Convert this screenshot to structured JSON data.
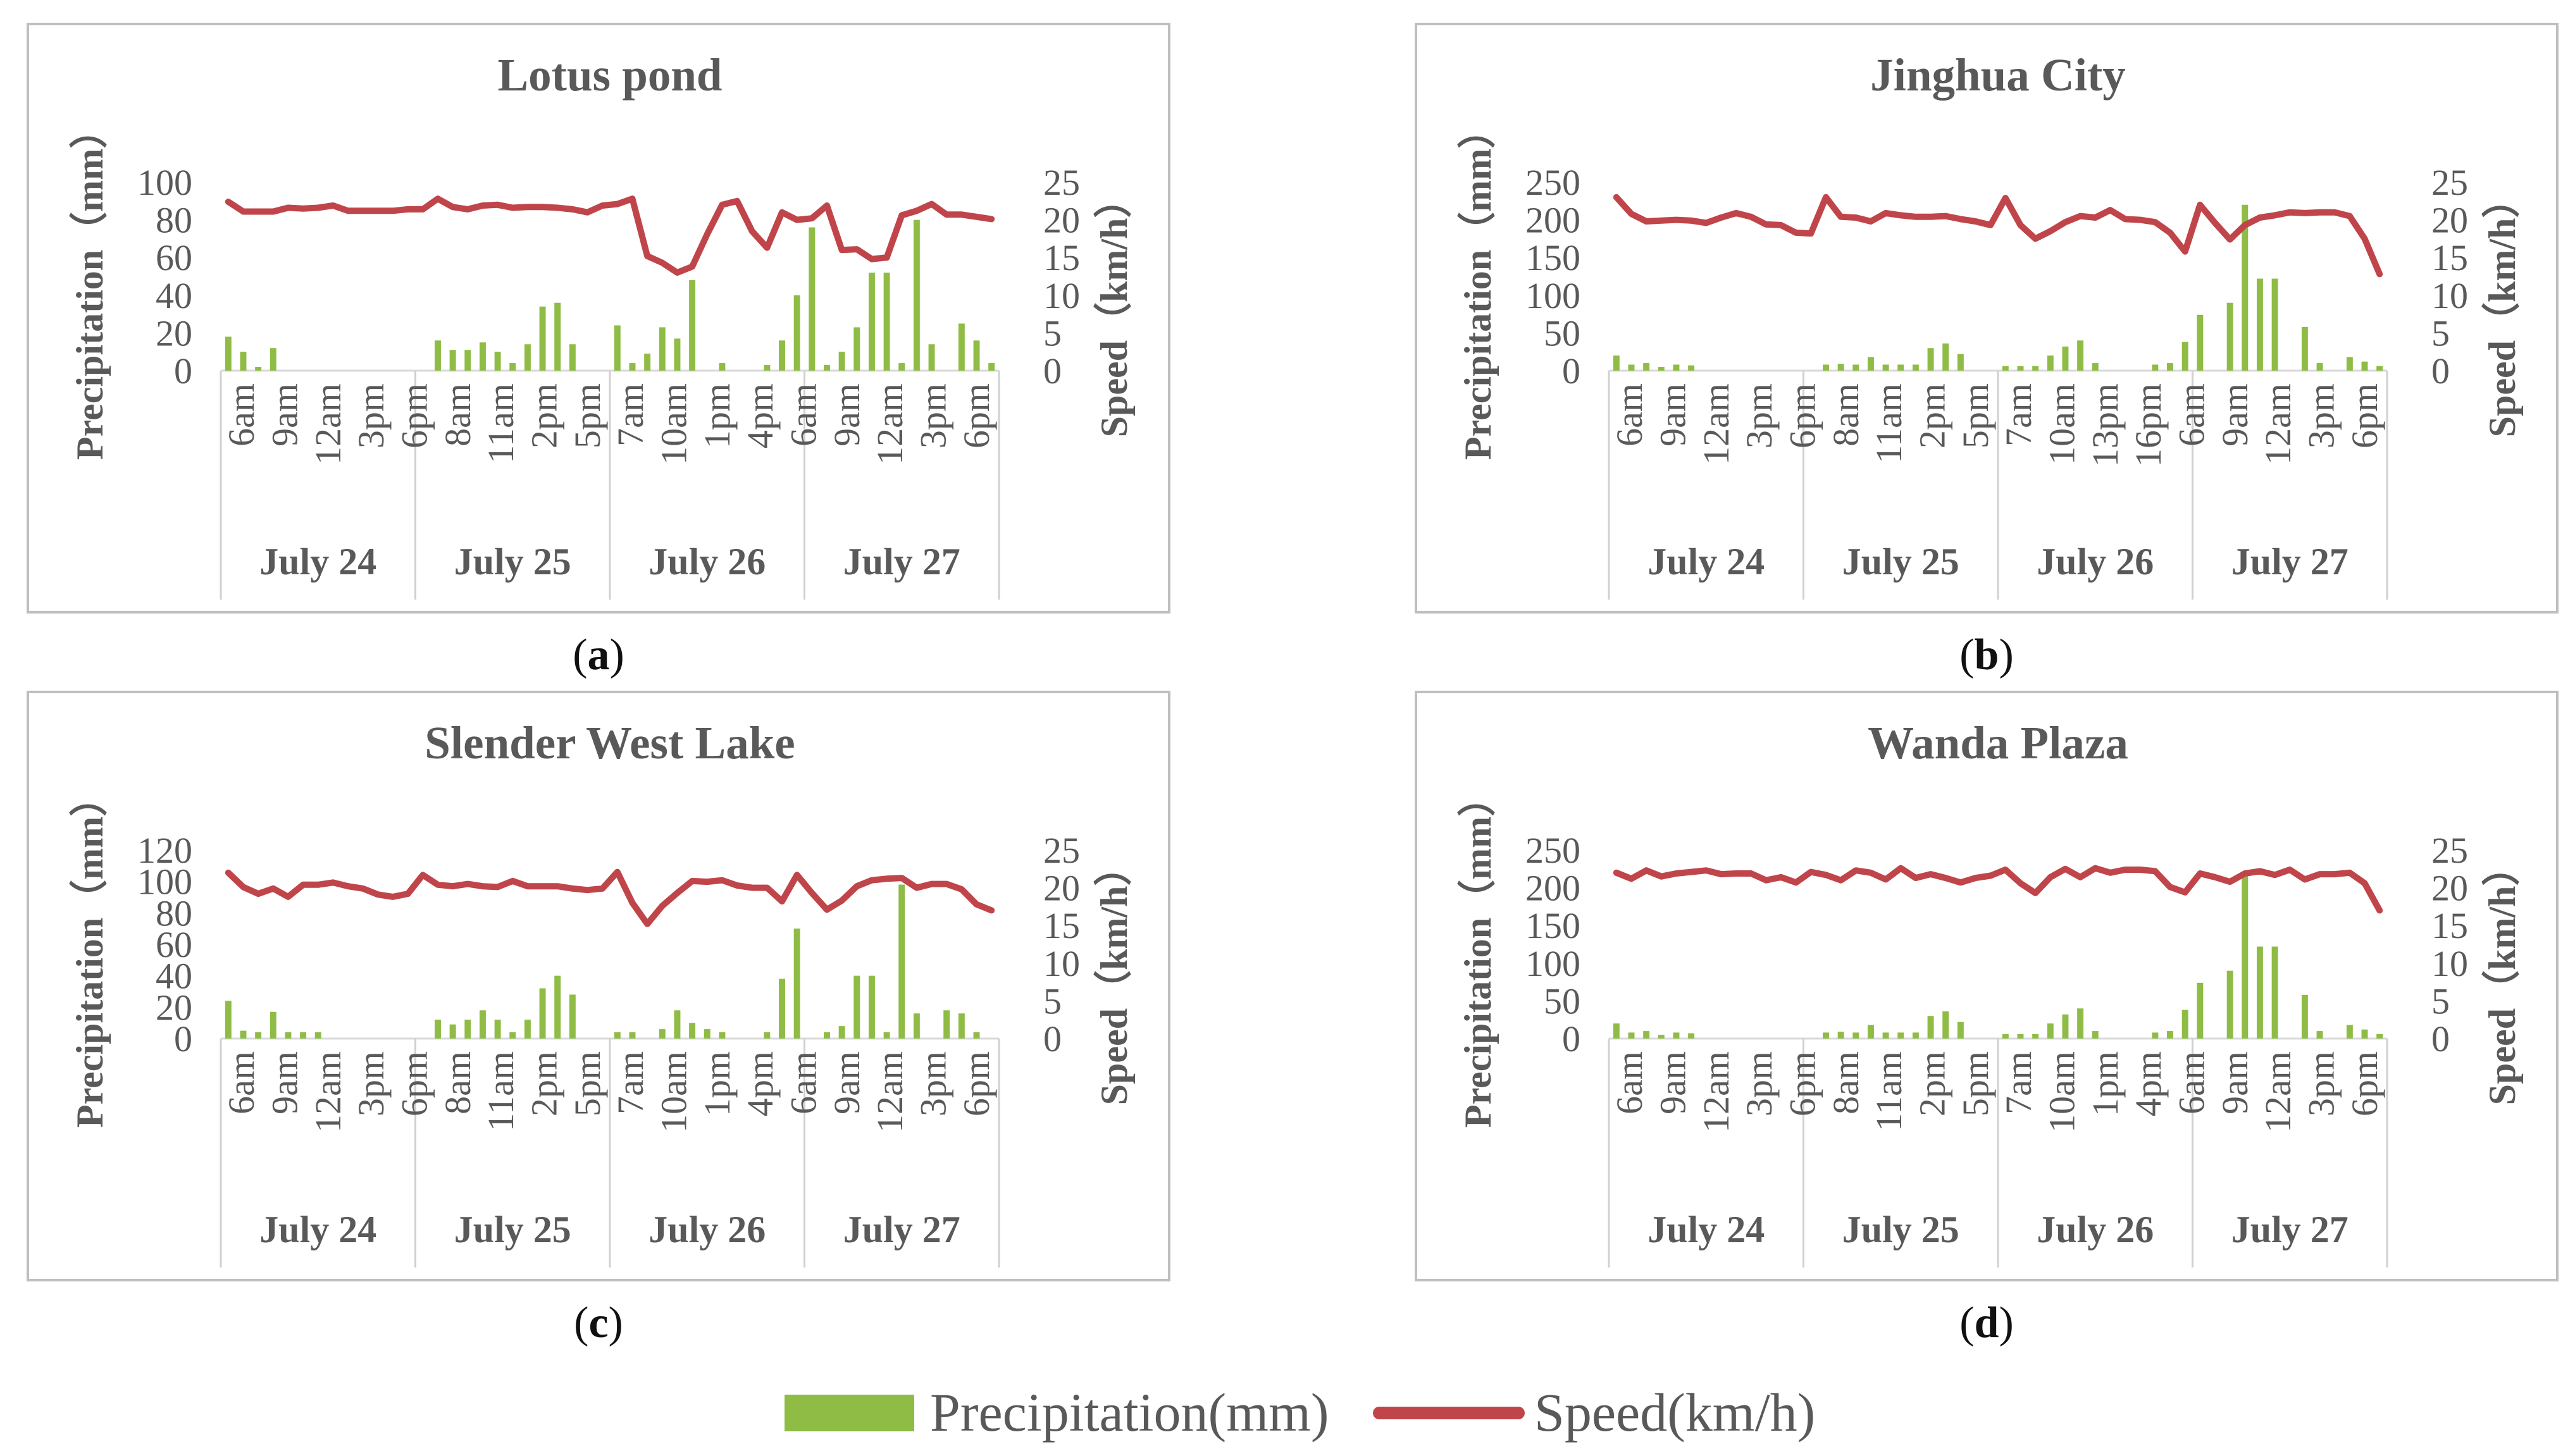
{
  "colors": {
    "precipitation": "#8fbc45",
    "speed": "#c0454a",
    "frame": "#bfbfbf",
    "text": "#595959"
  },
  "legend": {
    "precip_label": "Precipitation(mm)",
    "speed_label": "Speed(km/h)"
  },
  "chart_data": [
    {
      "type": "bar+line",
      "title": "Lotus pond",
      "caption_letter": "a",
      "ylabel": "Precipitation（mm）",
      "y2label": "Speed（km/h）",
      "ylim": [
        0,
        100
      ],
      "yticks": [
        0,
        20,
        40,
        60,
        80,
        100
      ],
      "y2lim": [
        0,
        25
      ],
      "y2ticks": [
        0,
        5,
        10,
        15,
        20,
        25
      ],
      "x_ticks": [
        "6am",
        "9am",
        "12am",
        "3pm",
        "6pm",
        "8am",
        "11am",
        "2pm",
        "5pm",
        "7am",
        "10am",
        "1pm",
        "4pm",
        "6am",
        "9am",
        "12am",
        "3pm",
        "6pm"
      ],
      "groups": [
        "July 24",
        "July 25",
        "July 26",
        "July 27"
      ],
      "n": 52,
      "precipitation": [
        18,
        10,
        2,
        12,
        0,
        0,
        0,
        0,
        0,
        0,
        0,
        0,
        0,
        0,
        16,
        11,
        11,
        15,
        10,
        4,
        14,
        34,
        36,
        14,
        0,
        0,
        24,
        4,
        9,
        23,
        17,
        48,
        0,
        4,
        0,
        0,
        3,
        16,
        40,
        76,
        3,
        10,
        23,
        52,
        52,
        4,
        80,
        14,
        0,
        25,
        16,
        4
      ],
      "speed": [
        22.4,
        21.1,
        21.1,
        21.1,
        21.6,
        21.5,
        21.6,
        21.9,
        21.2,
        21.2,
        21.2,
        21.2,
        21.4,
        21.4,
        22.8,
        21.7,
        21.4,
        21.9,
        22.0,
        21.6,
        21.7,
        21.7,
        21.6,
        21.4,
        21.0,
        21.9,
        22.1,
        22.8,
        15.2,
        14.3,
        13.0,
        13.8,
        18.1,
        22.0,
        22.5,
        18.5,
        16.3,
        21.0,
        20.0,
        20.2,
        21.9,
        16.0,
        16.1,
        14.8,
        15.0,
        20.6,
        21.2,
        22.1,
        20.7,
        20.7,
        20.4,
        20.1
      ]
    },
    {
      "type": "bar+line",
      "title": "Jinghua City",
      "caption_letter": "b",
      "ylabel": "Precipitation（mm）",
      "y2label": "Speed（km/h）",
      "ylim": [
        0,
        250
      ],
      "yticks": [
        0,
        50,
        100,
        150,
        200,
        250
      ],
      "y2lim": [
        0,
        25
      ],
      "y2ticks": [
        0,
        5,
        10,
        15,
        20,
        25
      ],
      "x_ticks": [
        "6am",
        "9am",
        "12am",
        "3pm",
        "6pm",
        "8am",
        "11am",
        "2pm",
        "5pm",
        "7am",
        "10am",
        "13pm",
        "16pm",
        "6am",
        "9am",
        "12am",
        "3pm",
        "6pm"
      ],
      "groups": [
        "July 24",
        "July 25",
        "July 26",
        "July 27"
      ],
      "n": 52,
      "precipitation": [
        20,
        8,
        10,
        5,
        8,
        7,
        0,
        0,
        0,
        0,
        0,
        0,
        0,
        0,
        8,
        9,
        8,
        18,
        8,
        8,
        8,
        30,
        36,
        22,
        0,
        0,
        6,
        6,
        6,
        20,
        32,
        40,
        10,
        0,
        0,
        0,
        8,
        10,
        38,
        74,
        0,
        90,
        220,
        122,
        122,
        0,
        58,
        10,
        0,
        18,
        12,
        6
      ],
      "speed": [
        23.0,
        20.8,
        19.8,
        19.9,
        20.0,
        19.9,
        19.6,
        20.3,
        20.9,
        20.4,
        19.4,
        19.3,
        18.3,
        18.2,
        23.0,
        20.4,
        20.3,
        19.8,
        20.9,
        20.6,
        20.4,
        20.4,
        20.5,
        20.1,
        19.8,
        19.3,
        22.9,
        19.3,
        17.5,
        18.5,
        19.7,
        20.5,
        20.3,
        21.3,
        20.1,
        20.0,
        19.7,
        18.3,
        15.8,
        22.0,
        19.6,
        17.4,
        19.3,
        20.3,
        20.6,
        21.0,
        20.9,
        21.0,
        21.0,
        20.5,
        17.5,
        12.8
      ]
    },
    {
      "type": "bar+line",
      "title": "Slender West Lake",
      "caption_letter": "c",
      "ylabel": "Precipitation（mm）",
      "y2label": "Speed（km/h）",
      "ylim": [
        0,
        120
      ],
      "yticks": [
        0,
        20,
        40,
        60,
        80,
        100,
        120
      ],
      "y2lim": [
        0,
        25
      ],
      "y2ticks": [
        0,
        5,
        10,
        15,
        20,
        25
      ],
      "x_ticks": [
        "6am",
        "9am",
        "12am",
        "3pm",
        "6pm",
        "8am",
        "11am",
        "2pm",
        "5pm",
        "7am",
        "10am",
        "1pm",
        "4pm",
        "6am",
        "9am",
        "12am",
        "3pm",
        "6pm"
      ],
      "groups": [
        "July 24",
        "July 25",
        "July 26",
        "July 27"
      ],
      "n": 52,
      "precipitation": [
        24,
        5,
        4,
        17,
        4,
        4,
        4,
        0,
        0,
        0,
        0,
        0,
        0,
        0,
        12,
        9,
        12,
        18,
        12,
        4,
        12,
        32,
        40,
        28,
        0,
        0,
        4,
        4,
        0,
        6,
        18,
        10,
        6,
        4,
        0,
        0,
        4,
        38,
        70,
        0,
        4,
        8,
        40,
        40,
        4,
        98,
        16,
        0,
        18,
        16,
        4,
        0
      ],
      "speed": [
        22.0,
        20.1,
        19.2,
        19.9,
        18.8,
        20.4,
        20.4,
        20.7,
        20.2,
        19.9,
        19.1,
        18.8,
        19.2,
        21.7,
        20.4,
        20.2,
        20.5,
        20.2,
        20.1,
        20.9,
        20.2,
        20.2,
        20.2,
        19.9,
        19.7,
        19.9,
        22.1,
        18.0,
        15.2,
        17.6,
        19.3,
        20.9,
        20.8,
        21.0,
        20.3,
        20.0,
        20.0,
        18.2,
        21.7,
        19.3,
        17.1,
        18.3,
        20.2,
        21.0,
        21.2,
        21.3,
        20.0,
        20.5,
        20.5,
        19.8,
        17.8,
        17.0
      ]
    },
    {
      "type": "bar+line",
      "title": "Wanda Plaza",
      "caption_letter": "d",
      "ylabel": "Precipitation（mm）",
      "y2label": "Speed（km/h）",
      "ylim": [
        0,
        250
      ],
      "yticks": [
        0,
        50,
        100,
        150,
        200,
        250
      ],
      "y2lim": [
        0,
        25
      ],
      "y2ticks": [
        0,
        5,
        10,
        15,
        20,
        25
      ],
      "x_ticks": [
        "6am",
        "9am",
        "12am",
        "3pm",
        "6pm",
        "8am",
        "11am",
        "2pm",
        "5pm",
        "7am",
        "10am",
        "1pm",
        "4pm",
        "6am",
        "9am",
        "12am",
        "3pm",
        "6pm"
      ],
      "groups": [
        "July 24",
        "July 25",
        "July 26",
        "July 27"
      ],
      "n": 52,
      "precipitation": [
        20,
        8,
        10,
        5,
        8,
        7,
        0,
        0,
        0,
        0,
        0,
        0,
        0,
        0,
        8,
        9,
        8,
        18,
        8,
        8,
        8,
        30,
        36,
        22,
        0,
        0,
        6,
        6,
        6,
        20,
        32,
        40,
        10,
        0,
        0,
        0,
        8,
        10,
        38,
        74,
        0,
        90,
        220,
        122,
        122,
        0,
        58,
        10,
        0,
        18,
        12,
        6
      ],
      "speed": [
        22.0,
        21.2,
        22.3,
        21.5,
        21.9,
        22.1,
        22.3,
        21.8,
        21.9,
        21.9,
        21.0,
        21.4,
        20.7,
        22.1,
        21.7,
        21.0,
        22.3,
        22.0,
        21.1,
        22.6,
        21.3,
        21.8,
        21.3,
        20.7,
        21.3,
        21.6,
        22.4,
        20.6,
        19.3,
        21.4,
        22.5,
        21.4,
        22.6,
        22.0,
        22.4,
        22.4,
        22.2,
        20.1,
        19.4,
        21.9,
        21.4,
        20.8,
        21.9,
        22.2,
        21.7,
        22.4,
        21.1,
        21.8,
        21.8,
        22.0,
        20.6,
        17.0
      ]
    }
  ]
}
